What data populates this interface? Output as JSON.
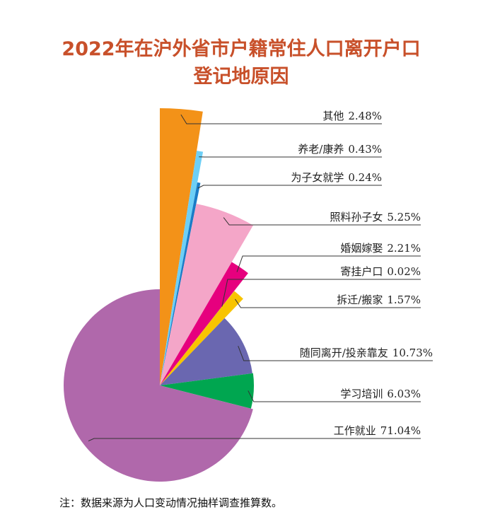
{
  "chart_data": {
    "type": "pie",
    "title": "2022年在沪外省市户籍常住人口离开户口登记地原因",
    "categories": [
      "其他",
      "养老/康养",
      "为子女就学",
      "照料孙子女",
      "婚姻嫁娶",
      "寄挂户口",
      "拆迁/搬家",
      "随同离开/投亲靠友",
      "学习培训",
      "工作就业"
    ],
    "values": [
      2.48,
      0.43,
      0.24,
      5.25,
      2.21,
      0.02,
      1.57,
      10.73,
      6.03,
      71.04
    ],
    "value_labels": [
      "2.48%",
      "0.43%",
      "0.24%",
      "5.25%",
      "2.21%",
      "0.02%",
      "1.57%",
      "10.73%",
      "6.03%",
      "71.04%"
    ],
    "colors": [
      "#f39218",
      "#6dcff6",
      "#1a7cc7",
      "#f4a6c8",
      "#e6007e",
      "#8a8a10",
      "#f8c400",
      "#6a67b0",
      "#00a650",
      "#b068ab"
    ],
    "note": "注：数据来源为人口变动情况抽样调查推算数。"
  }
}
